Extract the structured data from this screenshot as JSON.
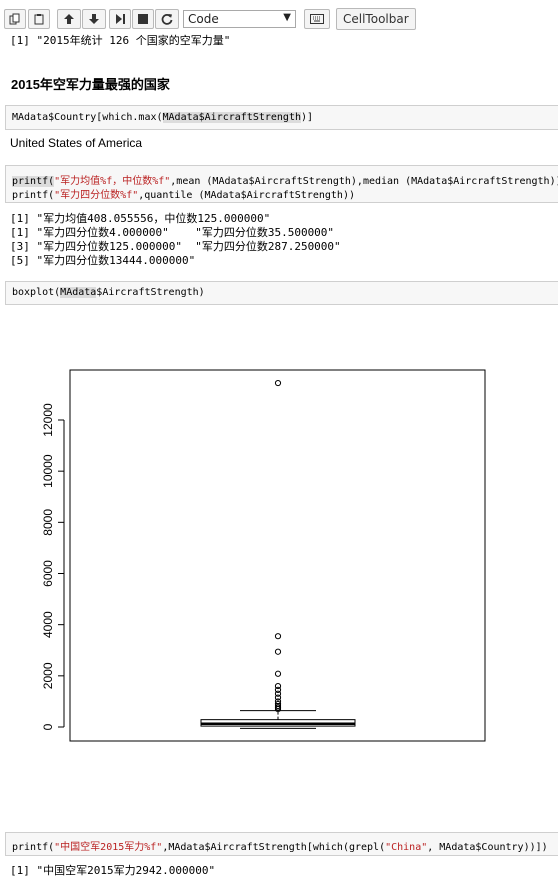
{
  "toolbar": {
    "cell_type": "Code",
    "celltoolbar_label": "CellToolbar"
  },
  "outputs": {
    "top_partial": "[1] \"2015年统计 126 个国家的空军力量\"",
    "country": "United States of America",
    "printf_lines": [
      "[1] \"军力均值408.055556，中位数125.000000\"",
      "[1] \"军力四分位数4.000000\"    \"军力四分位数35.500000\"",
      "[3] \"军力四分位数125.000000\"  \"军力四分位数287.250000\"",
      "[5] \"军力四分位数13444.000000\""
    ],
    "china": "[1] \"中国空军2015军力2942.000000\""
  },
  "markdown": {
    "heading": "2015年空军力量最强的国家"
  },
  "cells": {
    "c1": {
      "pre": "MAdata$Country[which.max(",
      "hl": "MAdata$AircraftStrength",
      "post": ")]"
    },
    "c2_line1": {
      "a": "printf(",
      "s": "\"军力均值%f，中位数%f\"",
      "b": ",mean (MAdata$AircraftStrength),median (MAdata$AircraftStrength))"
    },
    "c2_line2": {
      "a": "printf(",
      "s": "\"军力四分位数%f\"",
      "b": ",quantile (MAdata$AircraftStrength))"
    },
    "c3": {
      "pre": "boxplot(",
      "hl": "MAdata",
      "post": "$AircraftStrength)"
    },
    "c4": {
      "a": "printf(",
      "s": "\"中国空军2015军力%f\"",
      "b": ",MAdata$AircraftStrength[which(grepl(",
      "s2": "\"China\"",
      "c": ", MAdata$Country))])"
    }
  },
  "chart_data": {
    "type": "boxplot",
    "title": "",
    "xlabel": "",
    "ylabel": "",
    "ylim": [
      0,
      13444
    ],
    "y_ticks": [
      "0",
      "2000",
      "4000",
      "6000",
      "8000",
      "10000",
      "12000"
    ],
    "box": {
      "min": 4,
      "q1": 35.5,
      "median": 125,
      "q3": 287.25,
      "whisker_high": 640
    },
    "outliers": [
      13444,
      3550,
      2942,
      2080,
      1600,
      1450,
      1300,
      1150,
      1000,
      900,
      820,
      760,
      700
    ]
  }
}
